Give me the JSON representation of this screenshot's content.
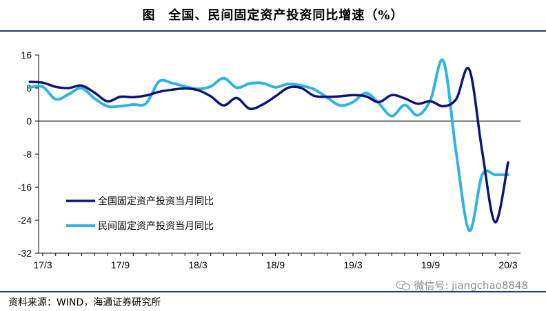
{
  "header": {
    "title": "图　全国、民间固定资产投资同比增速（%）"
  },
  "footer": {
    "source": "资料来源：WIND，海通证券研究所",
    "watermark": "微信号: jiangchao8848"
  },
  "colors": {
    "series_national": "#0b1476",
    "series_private": "#2fb3e6",
    "rule": "#1f3a6e"
  },
  "chart_data": {
    "type": "line",
    "title": "",
    "xlabel": "",
    "ylabel": "",
    "ylim": [
      -32,
      16
    ],
    "yticks": [
      16,
      8,
      0,
      -8,
      -16,
      -24,
      -32
    ],
    "xtick_labels": [
      "17/3",
      "17/9",
      "18/3",
      "18/9",
      "19/3",
      "19/9",
      "20/3"
    ],
    "x": [
      "2017-02",
      "2017-03",
      "2017-04",
      "2017-05",
      "2017-06",
      "2017-07",
      "2017-08",
      "2017-09",
      "2017-10",
      "2017-11",
      "2017-12",
      "2018-01",
      "2018-02",
      "2018-03",
      "2018-04",
      "2018-05",
      "2018-06",
      "2018-07",
      "2018-08",
      "2018-09",
      "2018-10",
      "2018-11",
      "2018-12",
      "2019-01",
      "2019-02",
      "2019-03",
      "2019-04",
      "2019-05",
      "2019-06",
      "2019-07",
      "2019-08",
      "2019-09",
      "2019-10",
      "2019-11",
      "2019-12",
      "2020-01",
      "2020-02",
      "2020-03",
      "2020-04"
    ],
    "grid": false,
    "legend_position": "lower-left",
    "series": [
      {
        "name": "全国固定资产投资当月同比",
        "values": [
          9.5,
          9.3,
          8.3,
          8.0,
          8.6,
          6.9,
          4.8,
          5.9,
          5.8,
          6.2,
          7.1,
          7.6,
          7.9,
          7.5,
          6.0,
          3.8,
          5.6,
          3.0,
          4.0,
          6.0,
          8.1,
          8.0,
          6.1,
          5.9,
          6.0,
          6.3,
          6.0,
          4.6,
          6.3,
          5.5,
          4.2,
          4.8,
          3.6,
          5.4,
          12.5,
          -7.4,
          -24.5,
          -10.0,
          -10.0
        ],
        "color": "#0b1476"
      },
      {
        "name": "民间固定资产投资当月同比",
        "values": [
          8.2,
          8.3,
          5.3,
          6.5,
          8.0,
          5.5,
          3.6,
          3.6,
          4.0,
          4.3,
          9.6,
          9.2,
          8.4,
          7.8,
          8.4,
          10.4,
          8.1,
          9.1,
          9.2,
          8.2,
          9.0,
          8.6,
          7.7,
          5.7,
          3.8,
          4.6,
          6.8,
          4.3,
          1.2,
          3.9,
          1.4,
          5.2,
          14.5,
          -8.0,
          -26.5,
          -13.0,
          -13.0,
          -13.0,
          -13.0
        ],
        "color": "#2fb3e6"
      }
    ]
  }
}
